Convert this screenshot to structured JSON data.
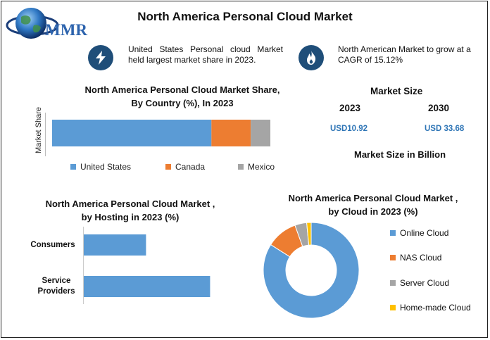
{
  "header": {
    "title": "North America Personal Cloud Market",
    "logo_text": "MMR"
  },
  "highlights": [
    {
      "icon": "lightning-icon",
      "text": "United States Personal cloud Market held largest market share in 2023."
    },
    {
      "icon": "flame-icon",
      "text": "North American Market to grow at a CAGR of 15.12%"
    }
  ],
  "market_size": {
    "title": "Market Size",
    "year_a": "2023",
    "year_b": "2030",
    "value_a": "USD10.92",
    "value_b": "USD 33.68",
    "unit_note": "Market Size in Billion"
  },
  "colors": {
    "blue": "#5b9bd5",
    "orange": "#ed7d31",
    "gray": "#a5a5a5",
    "yellow": "#ffc000",
    "icon_bg": "#1f4e79",
    "value_text": "#2e75b6"
  },
  "chart_data": [
    {
      "type": "bar",
      "orientation": "horizontal-stacked",
      "title_line1": "North America Personal Cloud Market Share,",
      "title_line2": "By Country (%), In 2023",
      "ylabel": "Market Share",
      "series": [
        {
          "name": "United States",
          "value": 73,
          "color": "#5b9bd5"
        },
        {
          "name": "Canada",
          "value": 18,
          "color": "#ed7d31"
        },
        {
          "name": "Mexico",
          "value": 9,
          "color": "#a5a5a5"
        }
      ],
      "legend_position": "bottom"
    },
    {
      "type": "bar",
      "orientation": "horizontal",
      "title_line1": "North America Personal Cloud Market ,",
      "title_line2": "by Hosting in 2023 (%)",
      "categories": [
        "Consumers",
        "Service Providers"
      ],
      "category_lines": [
        [
          "Consumers"
        ],
        [
          "Service",
          "Providers"
        ]
      ],
      "values": [
        34,
        69
      ],
      "xlim": [
        0,
        100
      ],
      "color": "#5b9bd5"
    },
    {
      "type": "pie",
      "style": "donut",
      "title_line1": "North America Personal Cloud Market ,",
      "title_line2": "by Cloud in 2023 (%)",
      "series": [
        {
          "name": "Online Cloud",
          "value": 84,
          "color": "#5b9bd5"
        },
        {
          "name": "NAS Cloud",
          "value": 10.5,
          "color": "#ed7d31"
        },
        {
          "name": "Server Cloud",
          "value": 4,
          "color": "#a5a5a5"
        },
        {
          "name": "Home-made Cloud",
          "value": 1.5,
          "color": "#ffc000"
        }
      ],
      "legend_position": "right"
    }
  ]
}
